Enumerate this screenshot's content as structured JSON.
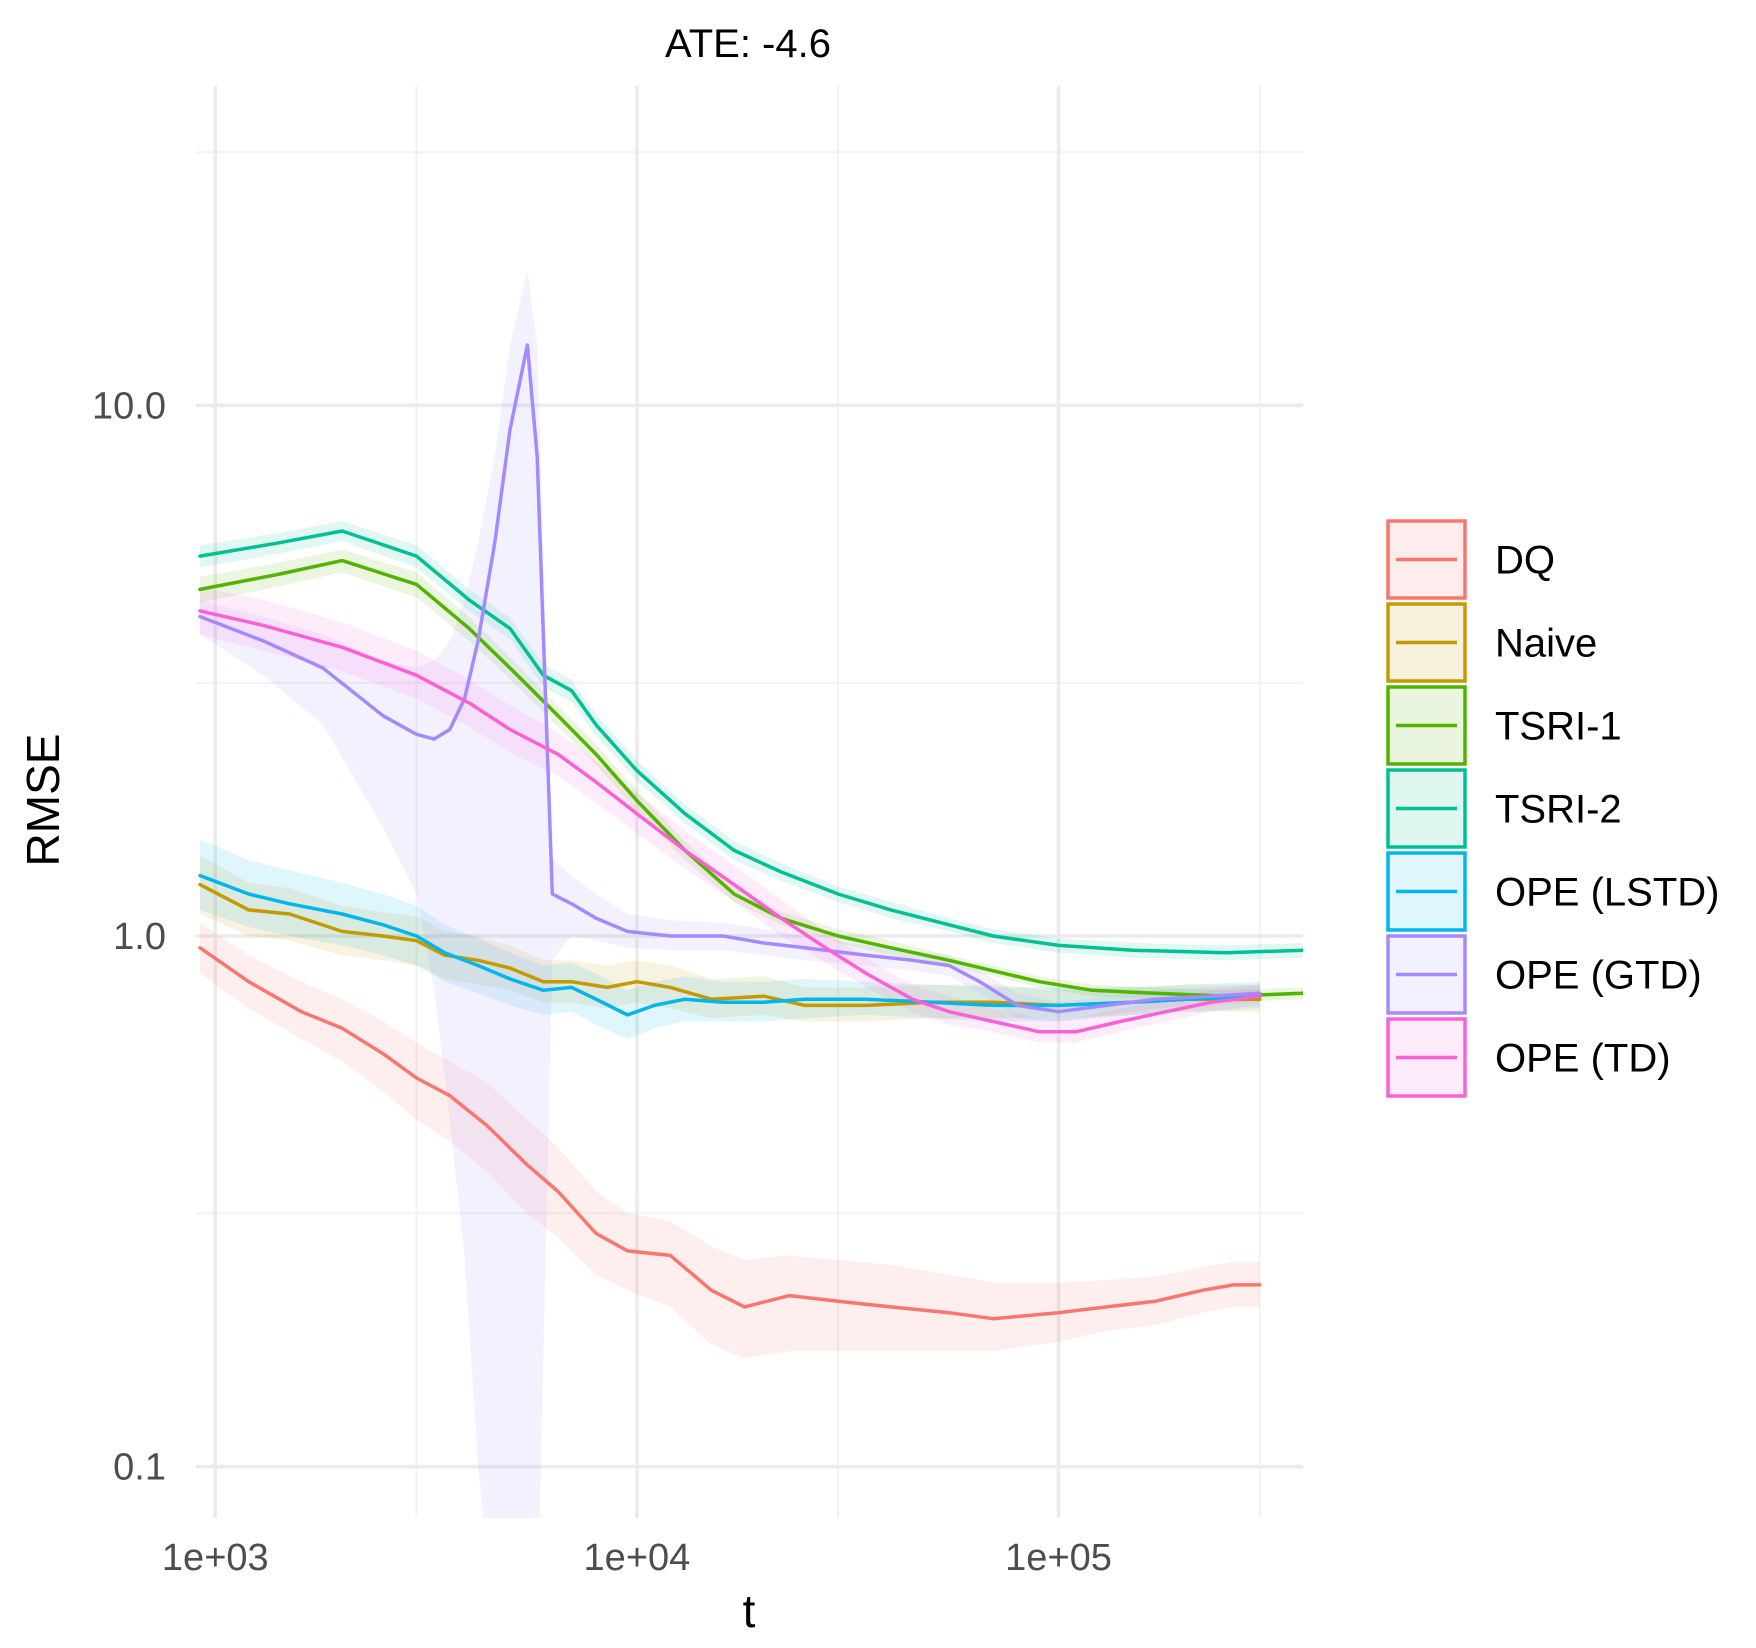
{
  "chart_data": {
    "type": "line",
    "title": "ATE: -4.6",
    "xlabel": "t",
    "ylabel": "RMSE",
    "x_scale": "log10",
    "y_scale": "log10",
    "xlim": [
      900,
      380000
    ],
    "ylim": [
      0.08,
      40
    ],
    "x_ticks": [
      {
        "value": 1000,
        "label": "1e+03"
      },
      {
        "value": 10000,
        "label": "1e+04"
      },
      {
        "value": 100000,
        "label": "1e+05"
      }
    ],
    "y_ticks": [
      {
        "value": 0.1,
        "label": "0.1"
      },
      {
        "value": 1.0,
        "label": "1.0"
      },
      {
        "value": 10.0,
        "label": "10.0"
      }
    ],
    "x_minor": [
      3000,
      30000,
      300000
    ],
    "y_minor": [
      0.3,
      3,
      30
    ],
    "grid": true,
    "legend_position": "right",
    "series": [
      {
        "name": "DQ",
        "color": "#F8766D",
        "x": [
          920,
          1200,
          1600,
          2000,
          2500,
          3000,
          3600,
          4400,
          5500,
          6500,
          8000,
          9500,
          12000,
          15000,
          18000,
          23000,
          30000,
          40000,
          55000,
          70000,
          100000,
          130000,
          170000,
          220000,
          260000,
          300000
        ],
        "y": [
          0.95,
          0.82,
          0.72,
          0.67,
          0.6,
          0.54,
          0.5,
          0.44,
          0.37,
          0.33,
          0.275,
          0.255,
          0.25,
          0.215,
          0.2,
          0.21,
          0.205,
          0.2,
          0.195,
          0.19,
          0.195,
          0.2,
          0.205,
          0.215,
          0.22,
          0.22
        ],
        "lower": [
          0.85,
          0.73,
          0.64,
          0.58,
          0.51,
          0.45,
          0.41,
          0.36,
          0.3,
          0.27,
          0.23,
          0.215,
          0.2,
          0.17,
          0.16,
          0.165,
          0.165,
          0.165,
          0.165,
          0.165,
          0.172,
          0.18,
          0.185,
          0.195,
          0.2,
          0.2
        ],
        "upper": [
          1.06,
          0.92,
          0.82,
          0.76,
          0.69,
          0.63,
          0.58,
          0.53,
          0.45,
          0.4,
          0.33,
          0.3,
          0.29,
          0.26,
          0.245,
          0.25,
          0.245,
          0.24,
          0.23,
          0.222,
          0.222,
          0.225,
          0.228,
          0.238,
          0.243,
          0.243
        ]
      },
      {
        "name": "Naive",
        "color": "#C49A00",
        "x": [
          920,
          1200,
          1500,
          2000,
          2500,
          3000,
          3500,
          4200,
          5000,
          6000,
          7000,
          8500,
          10000,
          12000,
          15000,
          20000,
          25000,
          35000,
          50000,
          70000,
          100000,
          150000,
          200000,
          300000
        ],
        "y": [
          1.25,
          1.12,
          1.1,
          1.02,
          1.0,
          0.98,
          0.92,
          0.9,
          0.87,
          0.82,
          0.82,
          0.8,
          0.82,
          0.8,
          0.76,
          0.77,
          0.74,
          0.74,
          0.75,
          0.75,
          0.74,
          0.75,
          0.76,
          0.76
        ],
        "lower": [
          1.1,
          1.0,
          0.98,
          0.92,
          0.9,
          0.88,
          0.83,
          0.81,
          0.79,
          0.75,
          0.75,
          0.73,
          0.75,
          0.73,
          0.7,
          0.71,
          0.69,
          0.69,
          0.7,
          0.7,
          0.7,
          0.71,
          0.72,
          0.72
        ],
        "upper": [
          1.42,
          1.26,
          1.23,
          1.14,
          1.11,
          1.09,
          1.02,
          1.0,
          0.96,
          0.9,
          0.9,
          0.88,
          0.9,
          0.88,
          0.83,
          0.84,
          0.8,
          0.8,
          0.81,
          0.81,
          0.79,
          0.8,
          0.81,
          0.81
        ]
      },
      {
        "name": "TSRI-1",
        "color": "#53B400",
        "x": [
          920,
          1400,
          2000,
          3000,
          4000,
          5000,
          6500,
          8000,
          10000,
          13000,
          17000,
          22000,
          30000,
          40000,
          55000,
          70000,
          90000,
          120000,
          170000,
          250000,
          380000
        ],
        "y": [
          4.5,
          4.8,
          5.1,
          4.6,
          3.8,
          3.2,
          2.6,
          2.2,
          1.8,
          1.45,
          1.2,
          1.08,
          1.0,
          0.95,
          0.9,
          0.86,
          0.82,
          0.79,
          0.78,
          0.77,
          0.78
        ],
        "lower": [
          4.25,
          4.55,
          4.85,
          4.35,
          3.6,
          3.05,
          2.48,
          2.1,
          1.72,
          1.39,
          1.16,
          1.05,
          0.97,
          0.92,
          0.88,
          0.84,
          0.8,
          0.77,
          0.76,
          0.75,
          0.76
        ],
        "upper": [
          4.75,
          5.05,
          5.35,
          4.85,
          4.0,
          3.35,
          2.72,
          2.3,
          1.88,
          1.51,
          1.24,
          1.11,
          1.03,
          0.98,
          0.92,
          0.88,
          0.84,
          0.81,
          0.8,
          0.79,
          0.8
        ]
      },
      {
        "name": "TSRI-2",
        "color": "#00C094",
        "x": [
          920,
          1400,
          2000,
          3000,
          4000,
          5000,
          6000,
          7000,
          8000,
          10000,
          13000,
          17000,
          22000,
          30000,
          40000,
          55000,
          70000,
          100000,
          150000,
          250000,
          380000
        ],
        "y": [
          5.2,
          5.5,
          5.8,
          5.2,
          4.3,
          3.8,
          3.1,
          2.9,
          2.5,
          2.05,
          1.7,
          1.45,
          1.32,
          1.2,
          1.12,
          1.05,
          1.0,
          0.96,
          0.94,
          0.93,
          0.94
        ],
        "lower": [
          4.95,
          5.25,
          5.55,
          4.95,
          4.1,
          3.62,
          2.95,
          2.76,
          2.38,
          1.96,
          1.63,
          1.39,
          1.27,
          1.16,
          1.08,
          1.02,
          0.97,
          0.93,
          0.91,
          0.9,
          0.91
        ],
        "upper": [
          5.45,
          5.75,
          6.05,
          5.45,
          4.5,
          3.98,
          3.25,
          3.04,
          2.62,
          2.14,
          1.77,
          1.51,
          1.37,
          1.24,
          1.16,
          1.08,
          1.03,
          0.99,
          0.97,
          0.96,
          0.97
        ]
      },
      {
        "name": "OPE (LSTD)",
        "color": "#00B6EB",
        "x": [
          920,
          1200,
          1500,
          2000,
          2500,
          3000,
          3500,
          4200,
          5000,
          6000,
          7000,
          8000,
          9500,
          11000,
          13000,
          16000,
          20000,
          25000,
          35000,
          50000,
          70000,
          100000,
          150000,
          200000,
          300000
        ],
        "y": [
          1.3,
          1.2,
          1.15,
          1.1,
          1.05,
          1.0,
          0.93,
          0.88,
          0.83,
          0.79,
          0.8,
          0.76,
          0.71,
          0.74,
          0.76,
          0.75,
          0.75,
          0.76,
          0.76,
          0.75,
          0.74,
          0.74,
          0.75,
          0.76,
          0.77
        ],
        "lower": [
          1.12,
          1.04,
          1.0,
          0.96,
          0.92,
          0.88,
          0.82,
          0.78,
          0.74,
          0.71,
          0.72,
          0.68,
          0.64,
          0.67,
          0.69,
          0.69,
          0.69,
          0.7,
          0.71,
          0.7,
          0.69,
          0.69,
          0.71,
          0.72,
          0.73
        ],
        "upper": [
          1.52,
          1.39,
          1.33,
          1.26,
          1.2,
          1.14,
          1.05,
          0.99,
          0.93,
          0.88,
          0.89,
          0.85,
          0.79,
          0.82,
          0.84,
          0.82,
          0.82,
          0.83,
          0.82,
          0.81,
          0.8,
          0.8,
          0.8,
          0.81,
          0.82
        ]
      },
      {
        "name": "OPE (GTD)",
        "color": "#A58AFF",
        "x": [
          920,
          1300,
          1800,
          2500,
          3000,
          3300,
          3600,
          3900,
          4200,
          4600,
          5000,
          5500,
          5800,
          6300,
          7000,
          8000,
          9500,
          12000,
          16000,
          20000,
          25000,
          35000,
          45000,
          55000,
          65000,
          80000,
          100000,
          130000,
          170000,
          230000,
          300000
        ],
        "y": [
          4.0,
          3.6,
          3.2,
          2.6,
          2.4,
          2.35,
          2.45,
          2.8,
          3.6,
          5.5,
          9.0,
          13.0,
          8.0,
          1.2,
          1.15,
          1.08,
          1.02,
          1.0,
          1.0,
          0.97,
          0.95,
          0.92,
          0.9,
          0.88,
          0.82,
          0.74,
          0.72,
          0.74,
          0.76,
          0.77,
          0.78
        ],
        "lower": [
          3.7,
          3.1,
          2.5,
          1.6,
          1.2,
          0.8,
          0.45,
          0.25,
          0.1,
          0.05,
          0.05,
          0.05,
          0.05,
          0.9,
          1.0,
          0.98,
          0.95,
          0.94,
          0.94,
          0.92,
          0.9,
          0.88,
          0.86,
          0.84,
          0.78,
          0.7,
          0.69,
          0.71,
          0.73,
          0.74,
          0.75
        ],
        "upper": [
          4.3,
          4.0,
          3.7,
          3.3,
          3.2,
          3.3,
          3.6,
          4.3,
          5.5,
          8.0,
          13.0,
          18.0,
          13.0,
          1.4,
          1.3,
          1.2,
          1.1,
          1.07,
          1.06,
          1.03,
          1.0,
          0.96,
          0.94,
          0.92,
          0.86,
          0.78,
          0.75,
          0.77,
          0.79,
          0.8,
          0.81
        ]
      },
      {
        "name": "OPE (TD)",
        "color": "#FB61D7",
        "x": [
          920,
          1300,
          2000,
          3000,
          4000,
          5000,
          6500,
          8000,
          10000,
          13000,
          17000,
          22000,
          28000,
          35000,
          45000,
          55000,
          70000,
          90000,
          110000,
          140000,
          180000,
          230000,
          300000
        ],
        "y": [
          4.1,
          3.85,
          3.5,
          3.1,
          2.75,
          2.45,
          2.2,
          1.95,
          1.7,
          1.45,
          1.25,
          1.08,
          0.95,
          0.85,
          0.76,
          0.72,
          0.69,
          0.66,
          0.66,
          0.69,
          0.72,
          0.75,
          0.77
        ],
        "lower": [
          3.7,
          3.45,
          3.15,
          2.8,
          2.48,
          2.22,
          2.0,
          1.78,
          1.56,
          1.34,
          1.16,
          1.0,
          0.89,
          0.8,
          0.72,
          0.68,
          0.66,
          0.63,
          0.63,
          0.66,
          0.69,
          0.72,
          0.74
        ],
        "upper": [
          4.55,
          4.3,
          3.9,
          3.45,
          3.05,
          2.72,
          2.42,
          2.14,
          1.86,
          1.58,
          1.36,
          1.17,
          1.02,
          0.91,
          0.81,
          0.77,
          0.73,
          0.7,
          0.7,
          0.73,
          0.76,
          0.79,
          0.81
        ]
      }
    ]
  }
}
